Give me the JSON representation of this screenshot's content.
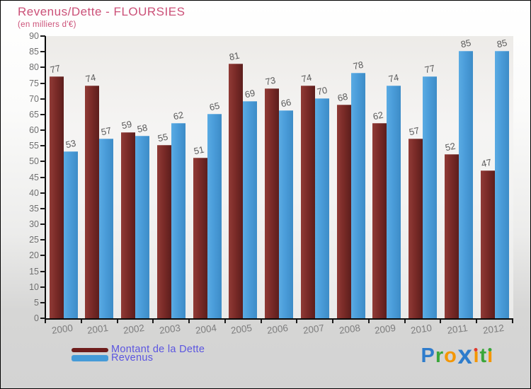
{
  "header": {
    "title": "Revenus/Dette - FLOURSIES",
    "subtitle": "(en milliers d'€)"
  },
  "chart_data": {
    "type": "bar",
    "title": "Revenus/Dette - FLOURSIES",
    "subtitle": "(en milliers d'€)",
    "categories": [
      "2000",
      "2001",
      "2002",
      "2003",
      "2004",
      "2005",
      "2006",
      "2007",
      "2008",
      "2009",
      "2010",
      "2011",
      "2012"
    ],
    "series": [
      {
        "name": "Montant de la Dette",
        "color": "#7b2b28",
        "color_light": "#903b36",
        "color_dark": "#5c1e1c",
        "values": [
          77,
          74,
          59,
          55,
          51,
          81,
          73,
          74,
          68,
          62,
          57,
          52,
          47
        ]
      },
      {
        "name": "Revenus",
        "color": "#4a9cd9",
        "color_light": "#5aabe3",
        "color_dark": "#3d8cc7",
        "values": [
          53,
          57,
          58,
          62,
          65,
          69,
          66,
          70,
          78,
          74,
          77,
          85,
          85
        ]
      }
    ],
    "ylim": [
      0,
      90
    ],
    "ytick_step": 5,
    "grid": false,
    "value_labels": true,
    "legend_position": "bottom-left"
  },
  "legend": {
    "text_color": "#5b55e0",
    "dette_swatch_color": "#6e1d1c",
    "revenus_swatch_color": "#459bd8"
  },
  "colors": {
    "title_pink": "#cb5078",
    "axis_black": "#0a0a0a",
    "value_label_gray": "#5a5a5a",
    "tick_label_gray": "#707070",
    "year_label_gray": "#7d7d7d"
  },
  "logo": {
    "name": "Proxiti",
    "letters": [
      {
        "ch": "P",
        "color": "#2e7ccc"
      },
      {
        "ch": "r",
        "color": "#3aa63a"
      },
      {
        "ch": "o",
        "color": "#f49600"
      },
      {
        "ch": "x",
        "color": "#2e7ccc",
        "big": true
      },
      {
        "ch": "i",
        "color": "#f49600",
        "dot_color": "#e03a2e"
      },
      {
        "ch": "t",
        "color": "#3aa63a"
      },
      {
        "ch": "i",
        "color": "#f49600",
        "dot_color": "#3aa63a"
      }
    ]
  }
}
